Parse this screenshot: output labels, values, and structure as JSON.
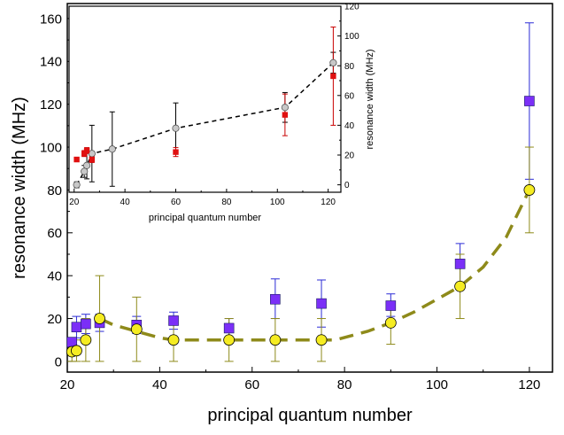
{
  "chart_data": [
    {
      "type": "scatter",
      "xlabel": "principal quantum number",
      "ylabel": "resonance width (MHz)",
      "xlim": [
        20,
        125
      ],
      "ylim": [
        -5,
        167
      ],
      "x_ticks": [
        20,
        40,
        60,
        80,
        100,
        120
      ],
      "y_ticks": [
        0,
        20,
        40,
        60,
        80,
        100,
        120,
        140,
        160
      ],
      "grid": false,
      "series": [
        {
          "marker": "square",
          "color": "#7b2ff7",
          "error_color": "#2b2bd6",
          "points": [
            {
              "x": 21,
              "y": 9,
              "lo": 7,
              "hi": 11
            },
            {
              "x": 22,
              "y": 16,
              "lo": 11,
              "hi": 21
            },
            {
              "x": 24,
              "y": 17.5,
              "lo": 13,
              "hi": 22
            },
            {
              "x": 27,
              "y": 18,
              "lo": 14,
              "hi": 22
            },
            {
              "x": 35,
              "y": 17,
              "lo": 13,
              "hi": 21
            },
            {
              "x": 43,
              "y": 19,
              "lo": 15,
              "hi": 23
            },
            {
              "x": 55,
              "y": 15.5,
              "lo": 11,
              "hi": 20
            },
            {
              "x": 65,
              "y": 29,
              "lo": 20,
              "hi": 38.5
            },
            {
              "x": 75,
              "y": 27,
              "lo": 16,
              "hi": 38
            },
            {
              "x": 90,
              "y": 26,
              "lo": 21,
              "hi": 31.5
            },
            {
              "x": 105,
              "y": 45.5,
              "lo": 36,
              "hi": 55
            },
            {
              "x": 120,
              "y": 121.5,
              "lo": 85,
              "hi": 158
            }
          ]
        },
        {
          "marker": "circle",
          "color": "#f5ec22",
          "error_color": "#8e8a1a",
          "points": [
            {
              "x": 21,
              "y": 4.5,
              "lo": 0,
              "hi": 9
            },
            {
              "x": 22,
              "y": 5,
              "lo": 0,
              "hi": 10
            },
            {
              "x": 24,
              "y": 10,
              "lo": 0,
              "hi": 20
            },
            {
              "x": 27,
              "y": 20,
              "lo": 0,
              "hi": 40
            },
            {
              "x": 35,
              "y": 15,
              "lo": 0,
              "hi": 30
            },
            {
              "x": 43,
              "y": 10,
              "lo": 0,
              "hi": 20
            },
            {
              "x": 55,
              "y": 10,
              "lo": 0,
              "hi": 20
            },
            {
              "x": 65,
              "y": 10,
              "lo": 0,
              "hi": 20
            },
            {
              "x": 75,
              "y": 10,
              "lo": 0,
              "hi": 20
            },
            {
              "x": 90,
              "y": 18,
              "lo": 8,
              "hi": 28
            },
            {
              "x": 105,
              "y": 35,
              "lo": 20,
              "hi": 50
            },
            {
              "x": 120,
              "y": 80,
              "lo": 60,
              "hi": 100
            }
          ]
        }
      ],
      "fit_line": {
        "color": "#8e8a1a",
        "style": "dashed",
        "points": [
          [
            27,
            20
          ],
          [
            30,
            17
          ],
          [
            35,
            14
          ],
          [
            40,
            11
          ],
          [
            43,
            10
          ],
          [
            50,
            10
          ],
          [
            60,
            10
          ],
          [
            70,
            10
          ],
          [
            78,
            10
          ],
          [
            85,
            14
          ],
          [
            90,
            18
          ],
          [
            95,
            23
          ],
          [
            100,
            29
          ],
          [
            105,
            35
          ],
          [
            110,
            44
          ],
          [
            115,
            58
          ],
          [
            120,
            80
          ]
        ]
      }
    },
    {
      "type": "scatter",
      "xlabel": "principal quantum number",
      "ylabel": "resonance width (MHz)",
      "xlim": [
        18,
        125
      ],
      "ylim": [
        -5,
        120
      ],
      "x_ticks": [
        20,
        40,
        60,
        80,
        100,
        120
      ],
      "y_ticks": [
        0,
        20,
        40,
        60,
        80,
        100,
        120
      ],
      "grid": false,
      "series": [
        {
          "marker": "circle",
          "color": "#c8c8c8",
          "error_color": "#000000",
          "points": [
            {
              "x": 21,
              "y": 0,
              "lo": -2,
              "hi": 2
            },
            {
              "x": 24,
              "y": 9,
              "lo": 5,
              "hi": 13
            },
            {
              "x": 25,
              "y": 13,
              "lo": 4,
              "hi": 22
            },
            {
              "x": 27,
              "y": 21,
              "lo": 2,
              "hi": 40
            },
            {
              "x": 35,
              "y": 24,
              "lo": -1,
              "hi": 49
            },
            {
              "x": 60,
              "y": 38,
              "lo": 21,
              "hi": 55
            },
            {
              "x": 103,
              "y": 52,
              "lo": 42,
              "hi": 62
            },
            {
              "x": 122,
              "y": 82,
              "lo": 75,
              "hi": 89
            }
          ]
        },
        {
          "marker": "square",
          "color": "#e01010",
          "error_color": "#c80000",
          "points": [
            {
              "x": 21,
              "y": 17,
              "lo": 17,
              "hi": 17
            },
            {
              "x": 24,
              "y": 21,
              "lo": 19,
              "hi": 23
            },
            {
              "x": 25,
              "y": 23,
              "lo": 21,
              "hi": 25
            },
            {
              "x": 27,
              "y": 17,
              "lo": 15,
              "hi": 19
            },
            {
              "x": 60,
              "y": 22,
              "lo": 19,
              "hi": 25
            },
            {
              "x": 103,
              "y": 47,
              "lo": 33,
              "hi": 61
            },
            {
              "x": 122,
              "y": 73,
              "lo": 40,
              "hi": 106
            }
          ]
        }
      ],
      "fit_line": {
        "color": "#000000",
        "style": "dashed",
        "points": [
          [
            21,
            0
          ],
          [
            24,
            9
          ],
          [
            25,
            13
          ],
          [
            27,
            21
          ],
          [
            35,
            24
          ],
          [
            60,
            38
          ],
          [
            103,
            52
          ],
          [
            122,
            82
          ]
        ]
      }
    }
  ]
}
